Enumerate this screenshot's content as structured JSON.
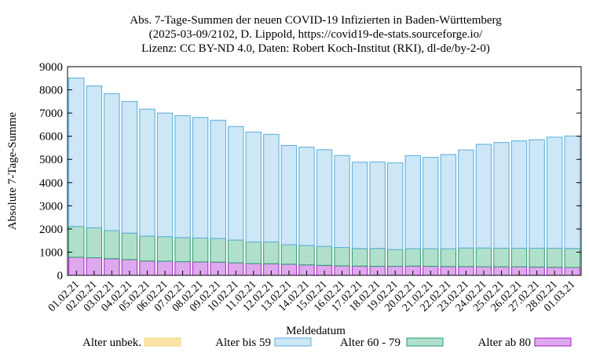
{
  "chart_data": {
    "type": "bar",
    "stacked": true,
    "title": [
      "Abs. 7-Tage-Summen der neuen COVID-19 Infizierten in Baden-Württemberg",
      "(2025-03-09/2102, D. Lippold, https://covid19-de-stats.sourceforge.io/",
      "Lizenz: CC BY-ND 4.0, Daten: Robert Koch-Institut (RKI), dl-de/by-2-0)"
    ],
    "xlabel": "Meldedatum",
    "ylabel": "Absolute 7-Tage-Summe",
    "ylim": [
      0,
      9000
    ],
    "yticks": [
      "0",
      "1000",
      "2000",
      "3000",
      "4000",
      "5000",
      "6000",
      "7000",
      "8000",
      "9000"
    ],
    "legend_placement": "bottom",
    "categories": [
      "01.02.21",
      "02.02.21",
      "03.02.21",
      "04.02.21",
      "05.02.21",
      "06.02.21",
      "07.02.21",
      "08.02.21",
      "09.02.21",
      "10.02.21",
      "11.02.21",
      "12.02.21",
      "13.02.21",
      "14.02.21",
      "15.02.21",
      "16.02.21",
      "17.02.21",
      "18.02.21",
      "19.02.21",
      "20.02.21",
      "21.02.21",
      "22.02.21",
      "23.02.21",
      "24.02.21",
      "25.02.21",
      "26.02.21",
      "27.02.21",
      "28.02.21",
      "01.03.21"
    ],
    "series": [
      {
        "name": "Alter unbek.",
        "color": "#f5d77f",
        "fill": "#fbe4a8",
        "values": [
          0,
          0,
          0,
          0,
          0,
          0,
          0,
          0,
          0,
          0,
          0,
          0,
          0,
          0,
          0,
          0,
          0,
          0,
          0,
          0,
          0,
          0,
          0,
          0,
          0,
          0,
          0,
          0,
          0
        ]
      },
      {
        "name": "Alter ab 80",
        "color": "#a020c0",
        "fill": "#dfa8ee",
        "values": [
          780,
          760,
          720,
          680,
          620,
          610,
          590,
          580,
          570,
          540,
          510,
          500,
          480,
          450,
          430,
          410,
          400,
          390,
          390,
          400,
          390,
          380,
          380,
          370,
          370,
          370,
          360,
          350,
          340
        ]
      },
      {
        "name": "Alter 60 - 79",
        "color": "#2a9a70",
        "fill": "#b0e0cc",
        "values": [
          1330,
          1290,
          1210,
          1140,
          1070,
          1060,
          1040,
          1030,
          1020,
          980,
          930,
          940,
          840,
          840,
          820,
          790,
          760,
          770,
          720,
          750,
          760,
          770,
          800,
          810,
          800,
          800,
          810,
          820,
          820
        ]
      },
      {
        "name": "Alter bis 59",
        "color": "#5aacd8",
        "fill": "#cde7f7",
        "values": [
          6400,
          6120,
          5900,
          5680,
          5480,
          5330,
          5260,
          5200,
          5100,
          4900,
          4740,
          4640,
          4280,
          4240,
          4170,
          3970,
          3720,
          3730,
          3740,
          4010,
          3940,
          4060,
          4230,
          4470,
          4560,
          4630,
          4680,
          4790,
          4850
        ]
      }
    ],
    "legend_order": [
      "Alter unbek.",
      "Alter bis 59",
      "Alter 60 - 79",
      "Alter ab 80"
    ]
  }
}
